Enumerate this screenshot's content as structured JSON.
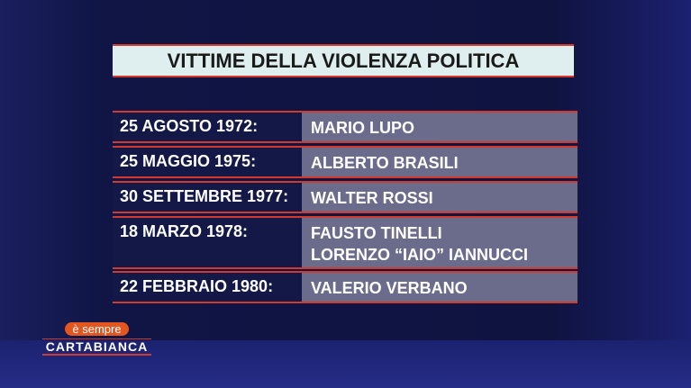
{
  "title": "VITTIME DELLA VIOLENZA POLITICA",
  "rows": [
    {
      "date": "25 AGOSTO 1972:",
      "names": [
        "MARIO LUPO"
      ]
    },
    {
      "date": "25 MAGGIO 1975:",
      "names": [
        "ALBERTO BRASILI"
      ]
    },
    {
      "date": "30 SETTEMBRE 1977:",
      "names": [
        "WALTER ROSSI"
      ]
    },
    {
      "date": "18 MARZO 1978:",
      "names": [
        "FAUSTO TINELLI",
        "LORENZO “IAIO” IANNUCCI"
      ]
    },
    {
      "date": "22 FEBBRAIO 1980:",
      "names": [
        "VALERIO VERBANO"
      ]
    }
  ],
  "logo": {
    "top": "è sempre",
    "bottom": "CARTABIANCA"
  },
  "colors": {
    "accent": "#d23a2c",
    "background": "#101545",
    "name_cell": "#6b6c8c"
  }
}
